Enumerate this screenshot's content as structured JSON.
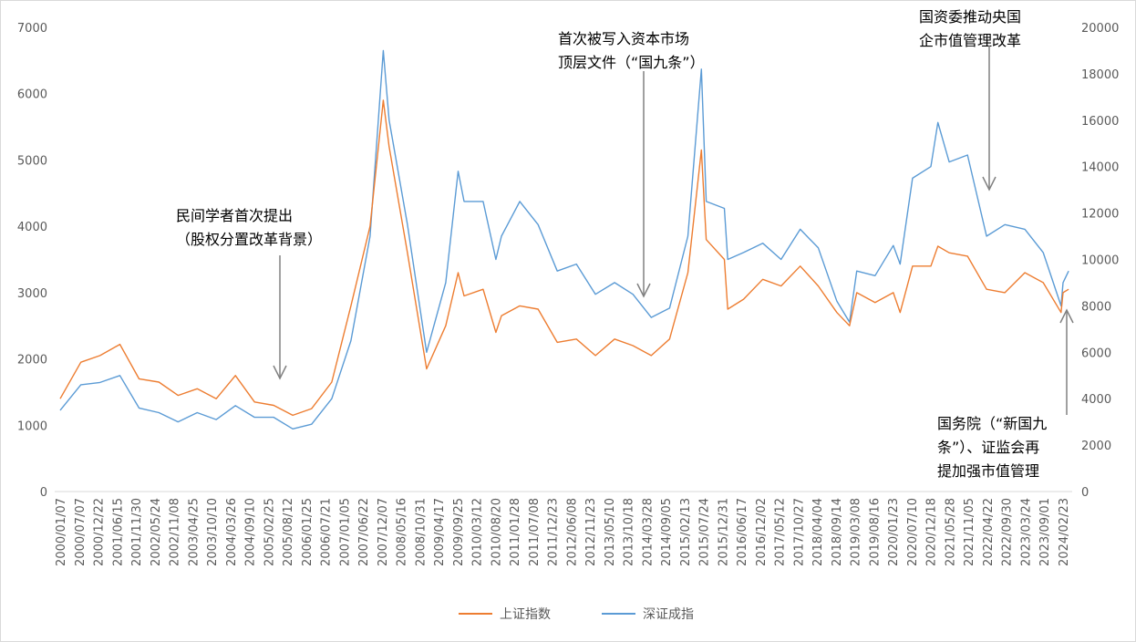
{
  "chart_data": {
    "type": "line",
    "title": "",
    "xlabel": "",
    "ylabel_left": "",
    "ylabel_right": "",
    "grid": false,
    "legend_position": "bottom",
    "y_left": {
      "min": 0,
      "max": 7000,
      "step": 1000,
      "ticks": [
        "0",
        "1000",
        "2000",
        "3000",
        "4000",
        "5000",
        "6000",
        "7000"
      ]
    },
    "y_right": {
      "min": 0,
      "max": 20000,
      "step": 2000,
      "ticks": [
        "0",
        "2000",
        "4000",
        "6000",
        "8000",
        "10000",
        "12000",
        "14000",
        "16000",
        "18000",
        "20000"
      ]
    },
    "x_tick_labels": [
      "2000/01/07",
      "2000/07/07",
      "2000/12/22",
      "2001/06/15",
      "2001/11/30",
      "2002/05/24",
      "2002/11/08",
      "2003/04/25",
      "2003/10/10",
      "2004/03/26",
      "2004/09/10",
      "2005/02/25",
      "2005/08/12",
      "2006/01/25",
      "2006/07/21",
      "2007/01/05",
      "2007/06/22",
      "2007/12/07",
      "2008/05/16",
      "2008/10/31",
      "2009/04/17",
      "2009/09/25",
      "2010/03/12",
      "2010/08/20",
      "2011/01/28",
      "2011/07/08",
      "2011/12/23",
      "2012/06/08",
      "2012/11/23",
      "2013/05/10",
      "2013/10/18",
      "2014/03/28",
      "2014/09/05",
      "2015/02/13",
      "2015/07/24",
      "2015/12/31",
      "2016/06/17",
      "2016/12/02",
      "2017/05/12",
      "2017/10/27",
      "2018/04/04",
      "2018/09/14",
      "2019/03/08",
      "2019/08/16",
      "2020/01/23",
      "2020/07/10",
      "2020/12/18",
      "2021/05/28",
      "2021/11/05",
      "2022/04/22",
      "2022/09/30",
      "2023/03/24",
      "2023/09/01",
      "2024/02/23"
    ],
    "series": [
      {
        "name": "上证指数",
        "axis": "left",
        "color": "#ED7D31",
        "points": [
          [
            "2000/01/07",
            1400
          ],
          [
            "2000/07/07",
            1950
          ],
          [
            "2000/12/22",
            2050
          ],
          [
            "2001/06/15",
            2220
          ],
          [
            "2001/11/30",
            1700
          ],
          [
            "2002/05/24",
            1650
          ],
          [
            "2002/11/08",
            1450
          ],
          [
            "2003/04/25",
            1550
          ],
          [
            "2003/10/10",
            1400
          ],
          [
            "2004/03/26",
            1750
          ],
          [
            "2004/09/10",
            1350
          ],
          [
            "2005/02/25",
            1300
          ],
          [
            "2005/08/12",
            1150
          ],
          [
            "2006/01/25",
            1250
          ],
          [
            "2006/07/21",
            1650
          ],
          [
            "2007/01/05",
            2800
          ],
          [
            "2007/06/22",
            4000
          ],
          [
            "2007/10/16",
            5900
          ],
          [
            "2007/12/07",
            5200
          ],
          [
            "2008/05/16",
            3600
          ],
          [
            "2008/10/31",
            1850
          ],
          [
            "2009/04/17",
            2500
          ],
          [
            "2009/08/04",
            3300
          ],
          [
            "2009/09/25",
            2950
          ],
          [
            "2010/03/12",
            3050
          ],
          [
            "2010/07/02",
            2400
          ],
          [
            "2010/08/20",
            2650
          ],
          [
            "2011/01/28",
            2800
          ],
          [
            "2011/07/08",
            2750
          ],
          [
            "2011/12/23",
            2250
          ],
          [
            "2012/06/08",
            2300
          ],
          [
            "2012/11/23",
            2050
          ],
          [
            "2013/05/10",
            2300
          ],
          [
            "2013/10/18",
            2200
          ],
          [
            "2014/03/28",
            2050
          ],
          [
            "2014/09/05",
            2300
          ],
          [
            "2015/02/13",
            3300
          ],
          [
            "2015/06/12",
            5150
          ],
          [
            "2015/07/24",
            3800
          ],
          [
            "2015/12/31",
            3500
          ],
          [
            "2016/01/29",
            2750
          ],
          [
            "2016/06/17",
            2900
          ],
          [
            "2016/12/02",
            3200
          ],
          [
            "2017/05/12",
            3100
          ],
          [
            "2017/10/27",
            3400
          ],
          [
            "2018/04/04",
            3100
          ],
          [
            "2018/09/14",
            2700
          ],
          [
            "2019/01/04",
            2500
          ],
          [
            "2019/03/08",
            3000
          ],
          [
            "2019/08/16",
            2850
          ],
          [
            "2020/01/23",
            3000
          ],
          [
            "2020/03/23",
            2700
          ],
          [
            "2020/07/10",
            3400
          ],
          [
            "2020/12/18",
            3400
          ],
          [
            "2021/02/18",
            3700
          ],
          [
            "2021/05/28",
            3600
          ],
          [
            "2021/11/05",
            3550
          ],
          [
            "2022/04/22",
            3050
          ],
          [
            "2022/09/30",
            3000
          ],
          [
            "2023/03/24",
            3300
          ],
          [
            "2023/09/01",
            3150
          ],
          [
            "2024/02/05",
            2700
          ],
          [
            "2024/02/23",
            3000
          ],
          [
            "2024/04/12",
            3050
          ]
        ]
      },
      {
        "name": "深证成指",
        "axis": "right",
        "color": "#5B9BD5",
        "points": [
          [
            "2000/01/07",
            3500
          ],
          [
            "2000/07/07",
            4600
          ],
          [
            "2000/12/22",
            4700
          ],
          [
            "2001/06/15",
            5000
          ],
          [
            "2001/11/30",
            3600
          ],
          [
            "2002/05/24",
            3400
          ],
          [
            "2002/11/08",
            3000
          ],
          [
            "2003/04/25",
            3400
          ],
          [
            "2003/10/10",
            3100
          ],
          [
            "2004/03/26",
            3700
          ],
          [
            "2004/09/10",
            3200
          ],
          [
            "2005/02/25",
            3200
          ],
          [
            "2005/08/12",
            2700
          ],
          [
            "2006/01/25",
            2900
          ],
          [
            "2006/07/21",
            4000
          ],
          [
            "2007/01/05",
            6500
          ],
          [
            "2007/06/22",
            11000
          ],
          [
            "2007/10/16",
            19000
          ],
          [
            "2007/12/07",
            16000
          ],
          [
            "2008/05/16",
            11500
          ],
          [
            "2008/10/31",
            6000
          ],
          [
            "2009/04/17",
            9000
          ],
          [
            "2009/08/04",
            13800
          ],
          [
            "2009/09/25",
            12500
          ],
          [
            "2010/03/12",
            12500
          ],
          [
            "2010/07/02",
            10000
          ],
          [
            "2010/08/20",
            11000
          ],
          [
            "2011/01/28",
            12500
          ],
          [
            "2011/07/08",
            11500
          ],
          [
            "2011/12/23",
            9500
          ],
          [
            "2012/06/08",
            9800
          ],
          [
            "2012/11/23",
            8500
          ],
          [
            "2013/05/10",
            9000
          ],
          [
            "2013/10/18",
            8500
          ],
          [
            "2014/03/28",
            7500
          ],
          [
            "2014/09/05",
            7900
          ],
          [
            "2015/02/13",
            11000
          ],
          [
            "2015/06/12",
            18200
          ],
          [
            "2015/07/24",
            12500
          ],
          [
            "2015/12/31",
            12200
          ],
          [
            "2016/01/29",
            10000
          ],
          [
            "2016/06/17",
            10300
          ],
          [
            "2016/12/02",
            10700
          ],
          [
            "2017/05/12",
            10000
          ],
          [
            "2017/10/27",
            11300
          ],
          [
            "2018/04/04",
            10500
          ],
          [
            "2018/09/14",
            8200
          ],
          [
            "2019/01/04",
            7300
          ],
          [
            "2019/03/08",
            9500
          ],
          [
            "2019/08/16",
            9300
          ],
          [
            "2020/01/23",
            10600
          ],
          [
            "2020/03/23",
            9800
          ],
          [
            "2020/07/10",
            13500
          ],
          [
            "2020/12/18",
            14000
          ],
          [
            "2021/02/18",
            15900
          ],
          [
            "2021/05/28",
            14200
          ],
          [
            "2021/11/05",
            14500
          ],
          [
            "2022/04/22",
            11000
          ],
          [
            "2022/09/30",
            11500
          ],
          [
            "2023/03/24",
            11300
          ],
          [
            "2023/09/01",
            10300
          ],
          [
            "2024/02/05",
            8000
          ],
          [
            "2024/02/23",
            9000
          ],
          [
            "2024/04/12",
            9500
          ]
        ]
      }
    ],
    "annotations": [
      {
        "lines": [
          "民间学者首次提出",
          "（股权分置改革背景）"
        ],
        "date": "2005/05/20"
      },
      {
        "lines": [
          "首次被写入资本市场",
          "顶层文件（“国九条”）"
        ],
        "date": "2014/05/09"
      },
      {
        "lines": [
          "国资委推动央国",
          "企市值管理改革"
        ],
        "date": "2022/01/28"
      },
      {
        "lines": [
          "国务院（“新国九",
          "条”）、证监会再",
          "提加强市值管理"
        ],
        "date": "2024/04/12"
      }
    ]
  }
}
